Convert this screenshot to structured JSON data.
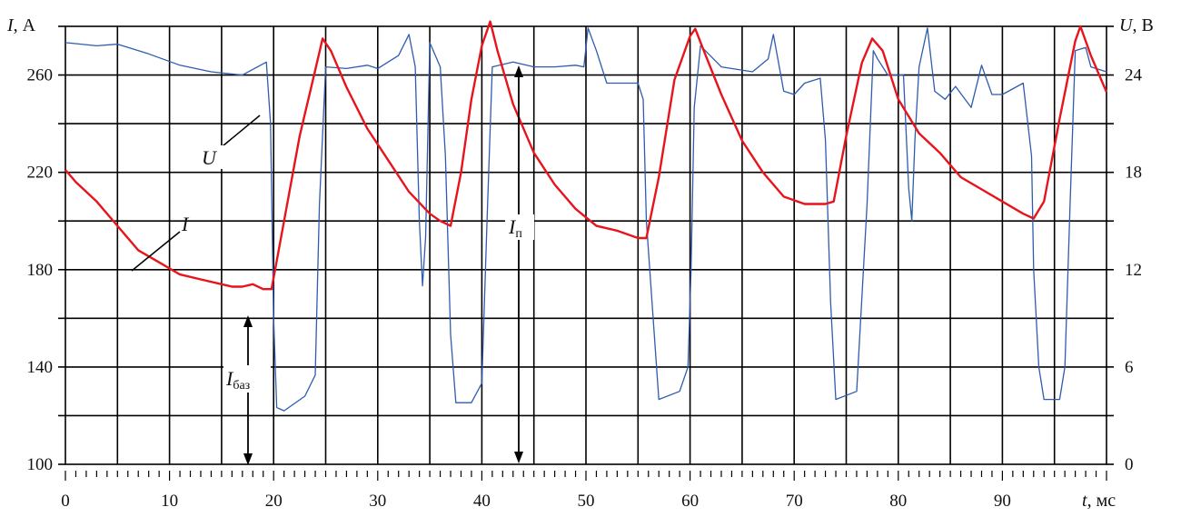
{
  "chart_data": {
    "type": "line",
    "x_axis": {
      "title_symbol": "t",
      "title_unit": ", мс",
      "range": [
        0,
        100
      ],
      "ticks": [
        "0",
        "10",
        "20",
        "30",
        "40",
        "50",
        "60",
        "70",
        "80",
        "90"
      ]
    },
    "y_left_axis": {
      "title_symbol": "I",
      "title_unit": ", А",
      "range": [
        100,
        280
      ],
      "ticks": [
        "100",
        "140",
        "180",
        "220",
        "260"
      ]
    },
    "y_right_axis": {
      "title_symbol": "U",
      "title_unit": ", В",
      "range": [
        0,
        27
      ],
      "ticks": [
        "0",
        "6",
        "12",
        "18",
        "24"
      ]
    },
    "grid": true,
    "series": [
      {
        "name": "I",
        "axis": "left",
        "color": "#e8141c",
        "x": [
          0,
          1,
          3,
          5,
          7,
          9,
          11,
          13,
          15,
          16,
          17,
          18,
          19,
          19.8,
          21,
          22.5,
          24,
          24.7,
          25.5,
          27,
          29,
          31,
          33,
          35,
          36,
          37,
          38,
          39,
          40,
          40.8,
          41.5,
          43,
          45,
          47,
          49,
          51,
          53,
          55,
          55.8,
          57,
          58.5,
          60,
          60.5,
          61.5,
          63,
          65,
          67,
          69,
          71,
          73,
          73.8,
          75,
          76.5,
          77.5,
          78.5,
          80,
          82,
          84,
          86,
          88,
          90,
          92,
          93,
          94,
          95.5,
          97,
          97.5,
          98.5,
          100
        ],
        "y": [
          221,
          216,
          208,
          198,
          188,
          183,
          178,
          176,
          174,
          173,
          173,
          174,
          172,
          172,
          200,
          235,
          262,
          275,
          270,
          255,
          238,
          225,
          212,
          203,
          200,
          198,
          220,
          250,
          272,
          282,
          270,
          248,
          228,
          215,
          205,
          198,
          196,
          193,
          193,
          218,
          258,
          276,
          279,
          268,
          252,
          233,
          220,
          210,
          207,
          207,
          208,
          235,
          265,
          275,
          270,
          250,
          236,
          228,
          218,
          213,
          208,
          203,
          201,
          208,
          242,
          274,
          280,
          268,
          253
        ]
      },
      {
        "name": "U",
        "axis": "right",
        "color": "#2e5cae",
        "x": [
          0,
          3,
          5,
          8,
          11,
          14,
          17,
          19.3,
          19.7,
          20,
          20.3,
          21,
          23,
          24,
          24.4,
          25,
          27,
          29,
          30,
          32,
          33,
          33.6,
          34,
          34.3,
          34.6,
          35,
          36,
          36.5,
          37,
          37.5,
          39,
          40,
          40.5,
          41,
          43,
          45,
          47,
          49,
          49.8,
          50.2,
          51,
          52,
          55,
          55.5,
          55.8,
          57,
          59,
          59.8,
          60.1,
          60.4,
          61,
          63,
          66,
          67.5,
          68,
          69,
          70,
          71,
          72.5,
          73,
          73.5,
          74,
          76,
          77,
          77.6,
          78,
          79,
          80.5,
          81,
          81.3,
          81.6,
          82,
          82.8,
          83.5,
          84.5,
          85.5,
          87,
          88,
          89,
          90,
          92,
          92.8,
          93,
          93.5,
          94,
          95.5,
          96,
          96.5,
          97,
          98,
          98.5,
          100
        ],
        "y": [
          26,
          25.8,
          25.9,
          25.3,
          24.6,
          24.2,
          24.0,
          24.8,
          21,
          9,
          3.5,
          3.3,
          4.2,
          5.5,
          16,
          24.5,
          24.4,
          24.6,
          24.4,
          25.2,
          26.5,
          24.5,
          15,
          11,
          14,
          26,
          24.5,
          19,
          8,
          3.8,
          3.8,
          5,
          15,
          24.5,
          24.8,
          24.5,
          24.5,
          24.6,
          24.5,
          26.9,
          25.5,
          23.5,
          23.5,
          22.5,
          15,
          4,
          4.5,
          6,
          12,
          22,
          25.8,
          24.5,
          24.2,
          25,
          26.5,
          23,
          22.8,
          23.5,
          23.8,
          20,
          10,
          4,
          4.5,
          16,
          25.5,
          25,
          24,
          24,
          17,
          15,
          20,
          24.5,
          26.9,
          23,
          22.5,
          23.3,
          22,
          24.6,
          22.8,
          22.8,
          23.5,
          19,
          12,
          6,
          4,
          4,
          6,
          16,
          25.5,
          25.7,
          24.5,
          24.2
        ]
      }
    ],
    "annotations": {
      "label_U": "U",
      "label_I": "I",
      "label_Ip_main": "I",
      "label_Ip_sub": "п",
      "label_Ibase_main": "I",
      "label_Ibase_sub": "баз"
    }
  }
}
